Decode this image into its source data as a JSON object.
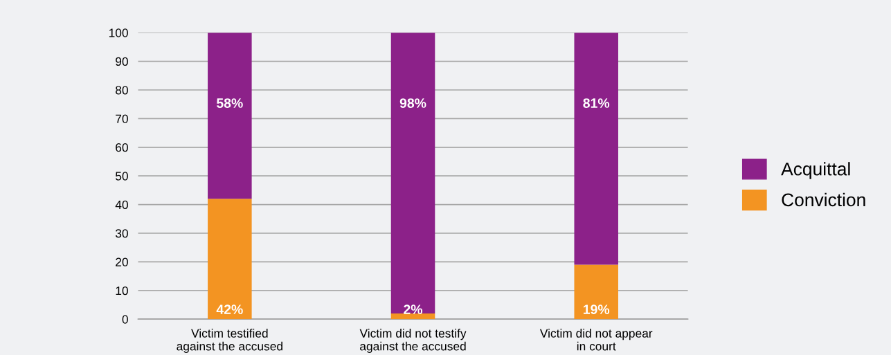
{
  "chart_data": {
    "type": "bar",
    "stacked": true,
    "categories": [
      "Victim testified\nagainst the accused",
      "Victim did not testify\nagainst the accused",
      "Victim did not appear\nin court"
    ],
    "series": [
      {
        "name": "Conviction",
        "color": "#f39422",
        "values": [
          42,
          2,
          19
        ],
        "value_labels": [
          "42%",
          "2%",
          "19%"
        ]
      },
      {
        "name": "Acquittal",
        "color": "#8c2189",
        "values": [
          58,
          98,
          81
        ],
        "value_labels": [
          "58%",
          "98%",
          "81%"
        ]
      }
    ],
    "ylim": [
      0,
      100
    ],
    "yticks": [
      0,
      10,
      20,
      30,
      40,
      50,
      60,
      70,
      80,
      90,
      100
    ],
    "grid": "y",
    "legend": "right"
  }
}
